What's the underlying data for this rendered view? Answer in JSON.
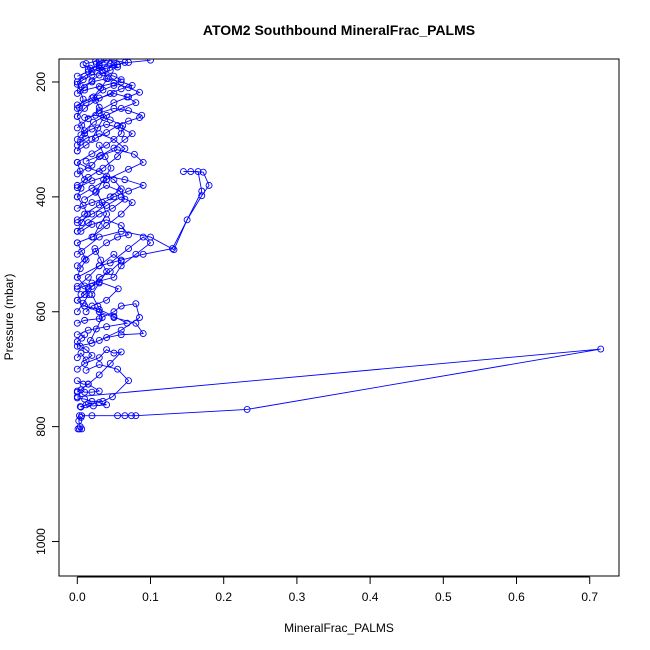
{
  "chart_data": {
    "type": "line",
    "title": "ATOM2 Southbound MineralFrac_PALMS",
    "xlabel": "MineralFrac_PALMS",
    "ylabel": "Pressure (mbar)",
    "xlim": [
      -0.025,
      0.74
    ],
    "ylim": [
      1060,
      160
    ],
    "y_inverted": true,
    "x_ticks": [
      0.0,
      0.1,
      0.2,
      0.3,
      0.4,
      0.5,
      0.6,
      0.7
    ],
    "x_tick_labels": [
      "0.0",
      "0.1",
      "0.2",
      "0.3",
      "0.4",
      "0.5",
      "0.6",
      "0.7"
    ],
    "y_ticks": [
      200,
      400,
      600,
      800,
      1000
    ],
    "y_tick_labels": [
      "200",
      "400",
      "600",
      "800",
      "1000"
    ],
    "grid": false,
    "legend": "none",
    "color": "#0000ff",
    "series": [
      {
        "x": [
          0.001,
          0.003,
          0.006,
          0.004,
          0.002,
          0.005,
          0.003
        ],
        "y": [
          804,
          804,
          804,
          800,
          790,
          784,
          781
        ]
      },
      {
        "x": [
          0.006,
          0.02,
          0.055,
          0.065,
          0.074,
          0.08,
          0.232,
          0.715,
          0.0
        ],
        "y": [
          781,
          781,
          781,
          781,
          781,
          781,
          770,
          665,
          748
        ]
      },
      {
        "x": [
          0.0,
          0.005,
          0.01,
          0.02,
          0.03,
          0.015,
          0.008,
          0.0
        ],
        "y": [
          738,
          736,
          740,
          740,
          738,
          726,
          726,
          720
        ]
      },
      {
        "x": [
          0.0,
          0.01,
          0.02,
          0.035,
          0.048,
          0.07,
          0.055,
          0.03,
          0.012
        ],
        "y": [
          750,
          752,
          756,
          756,
          748,
          720,
          700,
          692,
          702
        ]
      },
      {
        "x": [
          0.004,
          0.012,
          0.022,
          0.04,
          0.03,
          0.015,
          0.005
        ],
        "y": [
          765,
          762,
          764,
          762,
          758,
          760,
          766
        ]
      },
      {
        "x": [
          0.0,
          0.01,
          0.03,
          0.04,
          0.05,
          0.06,
          0.045,
          0.03,
          0.015,
          0.0
        ],
        "y": [
          700,
          690,
          680,
          666,
          672,
          670,
          690,
          710,
          726,
          740
        ]
      },
      {
        "x": [
          0.0,
          0.005,
          0.012,
          0.02,
          0.012,
          0.004,
          0.0,
          0.006,
          0.01
        ],
        "y": [
          680,
          672,
          684,
          676,
          666,
          660,
          652,
          646,
          640
        ]
      },
      {
        "x": [
          0.0,
          0.02,
          0.04,
          0.06,
          0.09,
          0.08,
          0.05,
          0.03,
          0.01
        ],
        "y": [
          660,
          655,
          645,
          640,
          638,
          620,
          610,
          600,
          590
        ]
      },
      {
        "x": [
          0.0,
          0.015,
          0.04,
          0.068,
          0.05,
          0.03,
          0.01,
          0.0
        ],
        "y": [
          640,
          632,
          626,
          620,
          608,
          596,
          590,
          580
        ]
      },
      {
        "x": [
          0.0,
          0.01,
          0.03,
          0.05,
          0.06,
          0.08,
          0.085,
          0.06,
          0.03
        ],
        "y": [
          620,
          615,
          612,
          600,
          590,
          586,
          610,
          632,
          650
        ]
      },
      {
        "x": [
          0.012,
          0.02,
          0.04,
          0.056,
          0.03,
          0.015,
          0.005
        ],
        "y": [
          600,
          590,
          580,
          560,
          548,
          560,
          570
        ]
      },
      {
        "x": [
          0.0,
          0.01,
          0.02,
          0.03,
          0.045,
          0.06,
          0.05,
          0.03,
          0.015,
          0.0
        ],
        "y": [
          580,
          570,
          556,
          540,
          530,
          512,
          500,
          520,
          540,
          556
        ]
      },
      {
        "x": [
          0.0,
          0.02,
          0.05,
          0.06,
          0.08,
          0.1,
          0.09,
          0.07,
          0.045
        ],
        "y": [
          560,
          550,
          540,
          520,
          500,
          480,
          470,
          490,
          515
        ]
      },
      {
        "x": [
          0.0,
          0.03,
          0.06,
          0.09,
          0.13,
          0.17,
          0.165,
          0.145
        ],
        "y": [
          540,
          520,
          510,
          500,
          490,
          390,
          356,
          356
        ]
      },
      {
        "x": [
          0.0,
          0.03,
          0.06,
          0.1,
          0.132,
          0.15,
          0.17,
          0.18,
          0.172,
          0.155
        ],
        "y": [
          500,
          470,
          460,
          470,
          492,
          440,
          398,
          380,
          357,
          356
        ]
      },
      {
        "x": [
          0.0,
          0.01,
          0.025,
          0.04,
          0.055,
          0.07,
          0.06,
          0.04,
          0.02,
          0.005
        ],
        "y": [
          520,
          508,
          495,
          480,
          470,
          466,
          450,
          440,
          448,
          460
        ]
      },
      {
        "x": [
          0.0,
          0.02,
          0.04,
          0.06,
          0.075,
          0.06,
          0.04,
          0.02,
          0.0
        ],
        "y": [
          480,
          470,
          450,
          430,
          410,
          400,
          415,
          430,
          445
        ]
      },
      {
        "x": [
          0.0,
          0.015,
          0.03,
          0.048,
          0.065,
          0.058,
          0.04,
          0.025,
          0.01
        ],
        "y": [
          460,
          445,
          430,
          420,
          404,
          390,
          380,
          392,
          405
        ]
      },
      {
        "x": [
          0.0,
          0.01,
          0.03,
          0.05,
          0.07,
          0.09,
          0.065,
          0.04,
          0.02,
          0.0
        ],
        "y": [
          440,
          430,
          414,
          400,
          390,
          380,
          370,
          364,
          372,
          384
        ]
      },
      {
        "x": [
          0.0,
          0.02,
          0.045,
          0.06,
          0.05,
          0.03,
          0.015,
          0.0
        ],
        "y": [
          420,
          410,
          400,
          386,
          370,
          356,
          350,
          340
        ]
      },
      {
        "x": [
          0.0,
          0.02,
          0.04,
          0.07,
          0.09,
          0.078,
          0.055,
          0.032,
          0.012
        ],
        "y": [
          400,
          385,
          370,
          352,
          340,
          326,
          318,
          328,
          338
        ]
      },
      {
        "x": [
          0.0,
          0.015,
          0.035,
          0.055,
          0.065,
          0.05,
          0.03,
          0.012,
          0.0
        ],
        "y": [
          380,
          366,
          350,
          330,
          316,
          300,
          290,
          298,
          310
        ]
      },
      {
        "x": [
          0.0,
          0.02,
          0.03,
          0.05,
          0.065,
          0.075,
          0.06,
          0.04,
          0.02,
          0.005
        ],
        "y": [
          360,
          345,
          330,
          315,
          300,
          290,
          280,
          274,
          282,
          292
        ]
      },
      {
        "x": [
          0.0,
          0.02,
          0.04,
          0.06,
          0.062,
          0.045,
          0.025,
          0.01
        ],
        "y": [
          340,
          325,
          310,
          290,
          276,
          266,
          258,
          262
        ]
      },
      {
        "x": [
          0.0,
          0.012,
          0.025,
          0.04,
          0.055,
          0.07,
          0.085,
          0.088,
          0.07,
          0.05,
          0.03
        ],
        "y": [
          320,
          310,
          298,
          288,
          276,
          268,
          262,
          258,
          250,
          246,
          254
        ]
      },
      {
        "x": [
          0.0,
          0.01,
          0.022,
          0.04,
          0.06,
          0.08,
          0.068,
          0.05,
          0.03,
          0.012,
          0.0
        ],
        "y": [
          300,
          285,
          270,
          258,
          246,
          236,
          226,
          220,
          228,
          236,
          246
        ]
      },
      {
        "x": [
          0.0,
          0.015,
          0.03,
          0.05,
          0.07,
          0.085,
          0.07,
          0.05,
          0.03,
          0.01
        ],
        "y": [
          280,
          264,
          250,
          236,
          226,
          218,
          210,
          202,
          208,
          214
        ]
      },
      {
        "x": [
          0.0,
          0.01,
          0.025,
          0.045,
          0.06,
          0.075,
          0.06,
          0.04,
          0.02,
          0.005
        ],
        "y": [
          260,
          246,
          232,
          220,
          212,
          206,
          200,
          194,
          200,
          208
        ]
      },
      {
        "x": [
          0.0,
          0.02,
          0.035,
          0.05,
          0.06,
          0.05,
          0.035,
          0.02,
          0.008,
          0.0
        ],
        "y": [
          240,
          228,
          214,
          206,
          196,
          190,
          184,
          188,
          196,
          204
        ]
      },
      {
        "x": [
          0.0,
          0.01,
          0.02,
          0.03,
          0.045,
          0.055,
          0.045,
          0.03,
          0.015
        ],
        "y": [
          220,
          210,
          198,
          188,
          180,
          174,
          168,
          172,
          178
        ]
      },
      {
        "x": [
          0.0,
          0.01,
          0.02,
          0.04,
          0.055,
          0.065,
          0.05,
          0.03
        ],
        "y": [
          200,
          190,
          182,
          176,
          170,
          166,
          162,
          164
        ]
      },
      {
        "x": [
          0.0,
          0.015,
          0.03,
          0.05,
          0.07,
          0.1
        ],
        "y": [
          190,
          182,
          176,
          170,
          166,
          162
        ]
      },
      {
        "x": [
          0.012,
          0.025,
          0.04,
          0.03,
          0.018,
          0.008
        ],
        "y": [
          168,
          164,
          162,
          170,
          176,
          170
        ]
      },
      {
        "x": [
          0.0,
          0.008,
          0.016,
          0.01,
          0.0,
          0.004,
          0.012,
          0.006,
          0.0
        ],
        "y": [
          600,
          585,
          570,
          555,
          540,
          525,
          510,
          495,
          480
        ]
      },
      {
        "x": [
          0.0,
          0.006,
          0.014,
          0.008,
          0.0,
          0.005,
          0.01,
          0.004,
          0.0
        ],
        "y": [
          460,
          445,
          430,
          415,
          400,
          385,
          370,
          355,
          340
        ]
      },
      {
        "x": [
          0.0,
          0.004,
          0.01,
          0.006,
          0.0,
          0.003,
          0.008,
          0.004,
          0.0
        ],
        "y": [
          320,
          305,
          290,
          275,
          260,
          245,
          230,
          215,
          200
        ]
      },
      {
        "x": [
          0.018,
          0.026,
          0.034,
          0.028,
          0.02,
          0.03,
          0.04,
          0.032,
          0.024
        ],
        "y": [
          650,
          630,
          610,
          590,
          570,
          550,
          530,
          510,
          490
        ]
      },
      {
        "x": [
          0.022,
          0.03,
          0.04,
          0.034,
          0.026,
          0.036,
          0.046,
          0.038,
          0.03
        ],
        "y": [
          470,
          450,
          430,
          410,
          390,
          370,
          350,
          330,
          310
        ]
      },
      {
        "x": [
          0.02,
          0.028,
          0.036,
          0.03,
          0.022,
          0.032,
          0.042,
          0.034,
          0.026
        ],
        "y": [
          300,
          280,
          262,
          244,
          226,
          210,
          194,
          180,
          168
        ]
      }
    ]
  }
}
